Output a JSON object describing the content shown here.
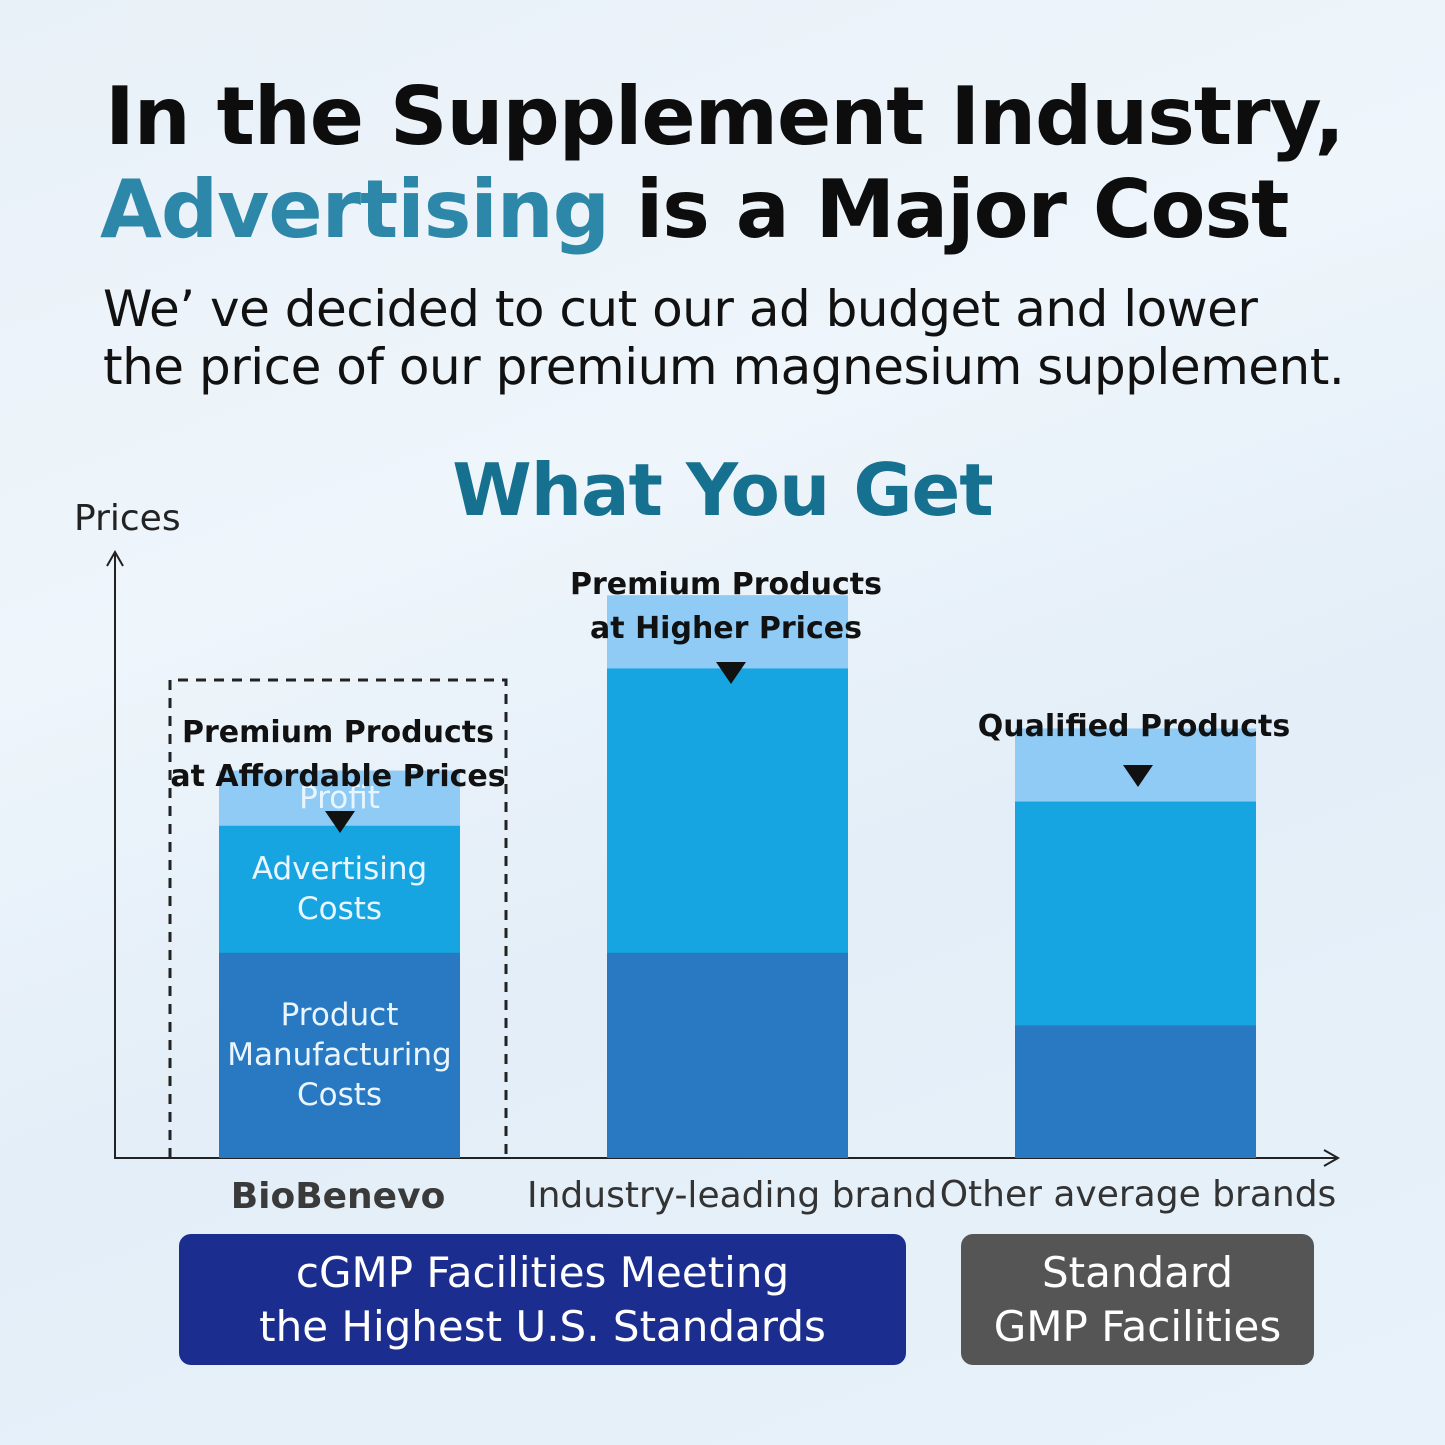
{
  "heading": {
    "line1": "In the Supplement Industry,",
    "line2_accent": "Advertising",
    "line2_rest": " is a Major Cost"
  },
  "subheading": {
    "line1": "We’ ve decided to cut our ad budget and lower",
    "line2": "the price of our premium magnesium supplement."
  },
  "section_title": "What You Get",
  "colors": {
    "accent_teal": "#2c87a8",
    "profit": "#8fcbf5",
    "advertising": "#16a5e0",
    "manufacturing": "#2879c2",
    "badge_blue": "#1b2d8e",
    "badge_gray": "#555555"
  },
  "chart_data": {
    "type": "bar",
    "stacked": true,
    "ylabel": "Prices",
    "xlabel": "",
    "ylim": [
      0,
      100
    ],
    "categories": [
      "BioBenevo",
      "Industry-leading brand",
      "Other average brands"
    ],
    "series": [
      {
        "name": "Product Manufacturing Costs",
        "label_lines": [
          "Product",
          "Manufacturing",
          "Costs"
        ],
        "values": [
          34,
          34,
          22
        ]
      },
      {
        "name": "Advertising Costs",
        "label_lines": [
          "Advertising",
          "Costs"
        ],
        "values": [
          21,
          47,
          37
        ]
      },
      {
        "name": "Profit",
        "label_lines": [
          "Profit"
        ],
        "values": [
          9,
          12,
          12
        ]
      }
    ],
    "annotations": [
      {
        "category": "BioBenevo",
        "lines": [
          "Premium Products",
          "at Affordable Prices"
        ]
      },
      {
        "category": "Industry-leading brand",
        "lines": [
          "Premium Products",
          "at Higher Prices"
        ]
      },
      {
        "category": "Other average brands",
        "lines": [
          "Qualified Products"
        ]
      }
    ]
  },
  "facilities": {
    "cgmp": [
      "cGMP Facilities Meeting",
      "the Highest U.S. Standards"
    ],
    "standard": [
      "Standard",
      "GMP Facilities"
    ]
  }
}
